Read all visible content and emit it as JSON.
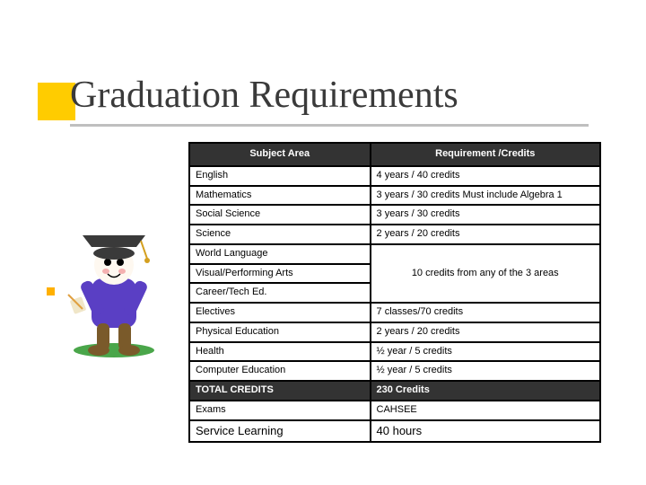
{
  "title": "Graduation Requirements",
  "accent_color": "#ffcc00",
  "bullet_color": "#ffb000",
  "underline_color": "#bfbfbf",
  "header_bg": "#333333",
  "header_fg": "#ffffff",
  "table": {
    "columns": [
      "Subject Area",
      "Requirement /Credits"
    ],
    "rows": [
      {
        "subject": "English",
        "req": "4 years / 40 credits"
      },
      {
        "subject": "Mathematics",
        "req": "3 years / 30 credits  Must include Algebra 1"
      },
      {
        "subject": "Social Science",
        "req": "3 years / 30 credits"
      },
      {
        "subject": "Science",
        "req": "2 years / 20 credits"
      }
    ],
    "group": {
      "subjects": [
        "World Language",
        "Visual/Performing Arts",
        "Career/Tech Ed."
      ],
      "req": "10 credits from any of the 3 areas"
    },
    "rows2": [
      {
        "subject": "Electives",
        "req": "7 classes/70 credits"
      },
      {
        "subject": "Physical Education",
        "req": "2 years / 20 credits"
      },
      {
        "subject": "Health",
        "req": "½ year / 5 credits"
      },
      {
        "subject": "Computer Education",
        "req": "½ year / 5 credits"
      }
    ],
    "total": {
      "subject": "TOTAL CREDITS",
      "req": "230 Credits"
    },
    "rows3": [
      {
        "subject": "Exams",
        "req": "CAHSEE"
      },
      {
        "subject": "Service Learning",
        "req": "40 hours",
        "fontsize": "13px"
      }
    ]
  }
}
